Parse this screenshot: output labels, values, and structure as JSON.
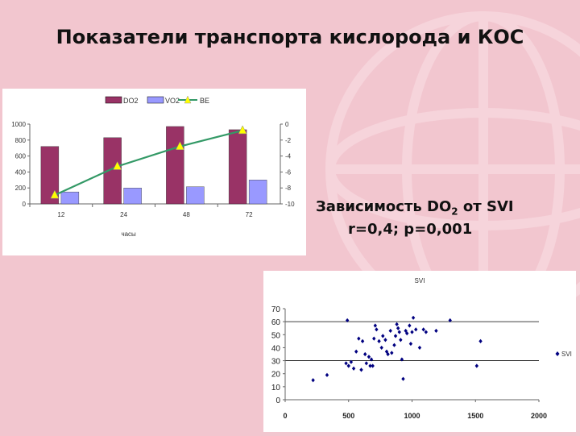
{
  "slide": {
    "title": "Показатели транспорта кислорода и КОС",
    "caption_line1_a": "Зависимость DO",
    "caption_line1_sub": "2",
    "caption_line1_b": " от SVI",
    "caption_line2": "r=0,4; p=0,001",
    "background_color": "#f2c6cf",
    "watermark": "globe-lines"
  },
  "chart_data": [
    {
      "type": "bar",
      "title": "",
      "categories": [
        "12",
        "24",
        "48",
        "72"
      ],
      "xlabel": "часы",
      "ylabel": "",
      "ylim": [
        0,
        1000
      ],
      "yticks": [
        "1000",
        "800",
        "600",
        "400",
        "200",
        "0"
      ],
      "y2lim": [
        -10,
        0
      ],
      "y2ticks": [
        "0",
        "-2",
        "-4",
        "-6",
        "-8",
        "-10"
      ],
      "grid": false,
      "legend_position": "top",
      "series": [
        {
          "name": "DO2",
          "kind": "bar",
          "axis": "left",
          "color": "#993366",
          "values": [
            720,
            830,
            970,
            930
          ]
        },
        {
          "name": "VO2",
          "kind": "bar",
          "axis": "left",
          "color": "#9999ff",
          "values": [
            150,
            200,
            215,
            300
          ]
        },
        {
          "name": "BE",
          "kind": "line",
          "axis": "right",
          "color": "#339966",
          "marker_color": "#ffff00",
          "values": [
            -8.9,
            -5.3,
            -2.8,
            -0.8
          ]
        }
      ]
    },
    {
      "type": "scatter",
      "title": "SVI",
      "xlim": [
        0,
        2000
      ],
      "xticks": [
        "0",
        "500",
        "1000",
        "1500",
        "2000"
      ],
      "ylim": [
        0,
        70
      ],
      "yticks": [
        "70",
        "60",
        "50",
        "40",
        "30",
        "20",
        "10",
        "0"
      ],
      "grid": true,
      "legend_position": "right",
      "series": [
        {
          "name": "SVI",
          "color": "#000080",
          "points": [
            [
              220,
              15
            ],
            [
              330,
              19
            ],
            [
              490,
              61
            ],
            [
              480,
              28
            ],
            [
              500,
              26
            ],
            [
              520,
              29
            ],
            [
              540,
              24
            ],
            [
              560,
              37
            ],
            [
              580,
              47
            ],
            [
              600,
              23
            ],
            [
              610,
              45
            ],
            [
              630,
              35
            ],
            [
              640,
              28
            ],
            [
              660,
              33
            ],
            [
              670,
              26
            ],
            [
              680,
              31
            ],
            [
              690,
              26
            ],
            [
              700,
              47
            ],
            [
              710,
              57
            ],
            [
              720,
              54
            ],
            [
              740,
              45
            ],
            [
              760,
              40
            ],
            [
              770,
              49
            ],
            [
              790,
              46
            ],
            [
              800,
              37
            ],
            [
              810,
              35
            ],
            [
              830,
              53
            ],
            [
              840,
              36
            ],
            [
              860,
              42
            ],
            [
              870,
              49
            ],
            [
              880,
              58
            ],
            [
              890,
              55
            ],
            [
              900,
              52
            ],
            [
              910,
              46
            ],
            [
              920,
              31
            ],
            [
              930,
              16
            ],
            [
              950,
              53
            ],
            [
              960,
              51
            ],
            [
              980,
              57
            ],
            [
              990,
              43
            ],
            [
              1000,
              52
            ],
            [
              1010,
              63
            ],
            [
              1030,
              54
            ],
            [
              1060,
              40
            ],
            [
              1090,
              54
            ],
            [
              1110,
              52
            ],
            [
              1190,
              53
            ],
            [
              1300,
              61
            ],
            [
              1510,
              26
            ],
            [
              1540,
              45
            ]
          ]
        }
      ]
    }
  ]
}
